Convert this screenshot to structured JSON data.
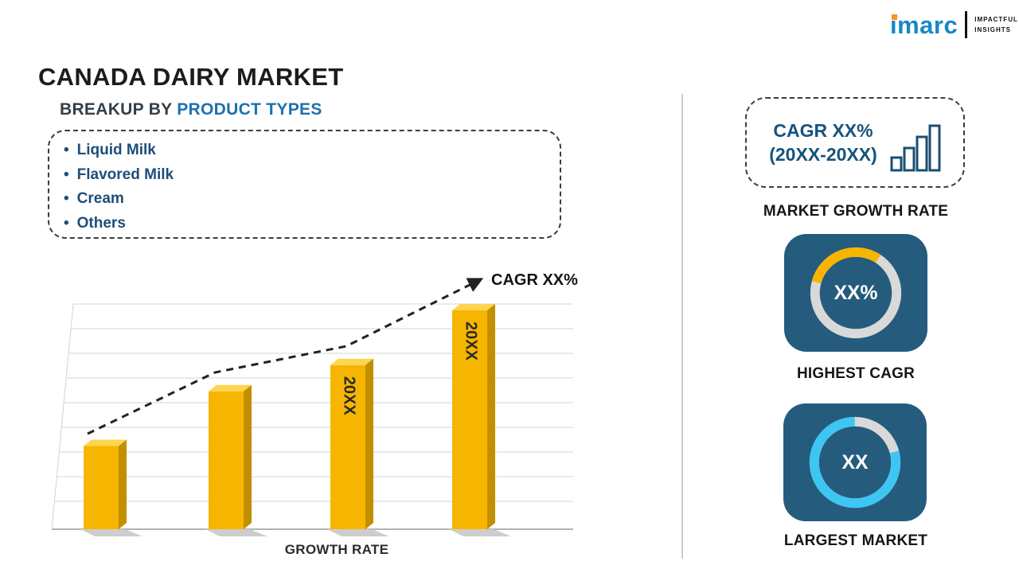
{
  "logo": {
    "brand": "imarc",
    "tagline_line1": "IMPACTFUL",
    "tagline_line2": "INSIGHTS"
  },
  "title": "CANADA DAIRY MARKET",
  "breakup": {
    "heading_prefix": "BREAKUP BY",
    "heading_highlight": "PRODUCT TYPES",
    "items": [
      "Liquid Milk",
      "Flavored Milk",
      "Cream",
      "Others"
    ]
  },
  "growth_chart": {
    "cagr_annotation": "CAGR XX%",
    "x_axis_label": "GROWTH RATE"
  },
  "sidebar": {
    "cagr_box_line1": "CAGR XX%",
    "cagr_box_line2": "(20XX-20XX)",
    "market_growth_rate_label": "MARKET GROWTH RATE",
    "highest_cagr_value": "XX%",
    "highest_cagr_label": "HIGHEST CAGR",
    "largest_market_value": "XX",
    "largest_market_label": "LARGEST MARKET"
  },
  "colors": {
    "bar_gold": "#F6B500",
    "bar_gold_top": "#FFD44F",
    "bar_gold_side": "#C18F00",
    "accent_cyan": "#3EC6F2",
    "accent_yellow": "#F8B500",
    "card_blue": "#255C7E",
    "heading_blue": "#1D71AD",
    "navy": "#16537E",
    "brand_blue": "#1887C9",
    "brand_orange": "#F7941D"
  },
  "chart_data": [
    {
      "type": "bar",
      "title": "",
      "categories": [
        "",
        "",
        "20XX",
        "20XX"
      ],
      "values": [
        38,
        63,
        75,
        100
      ],
      "xlabel": "GROWTH RATE",
      "ylabel": "",
      "ylim": [
        0,
        100
      ],
      "annotation": "CAGR XX%",
      "trendline": {
        "style": "dashed-arrow",
        "direction": "rising"
      },
      "grid": true,
      "legend": false
    },
    {
      "type": "pie",
      "title": "HIGHEST CAGR",
      "center_label": "XX%",
      "slices": [
        {
          "name": "highlight",
          "value": 30,
          "color": "#F8B500"
        },
        {
          "name": "remainder",
          "value": 70,
          "color": "#D9D9D9"
        }
      ]
    },
    {
      "type": "pie",
      "title": "LARGEST MARKET",
      "center_label": "XX",
      "slices": [
        {
          "name": "highlight",
          "value": 79,
          "color": "#3EC6F2"
        },
        {
          "name": "remainder",
          "value": 21,
          "color": "#D9D9D9"
        }
      ]
    }
  ]
}
